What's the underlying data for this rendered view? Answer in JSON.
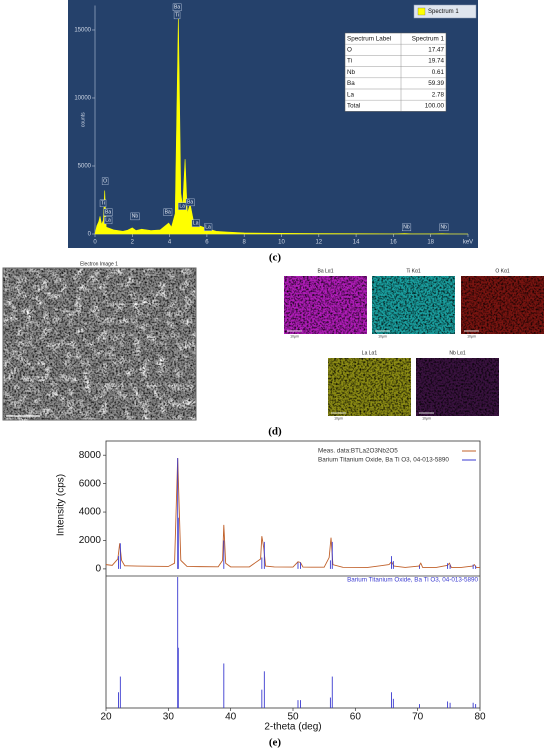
{
  "panels": {
    "c": "(c)",
    "d": "(d)",
    "e": "(e)"
  },
  "chart_data": [
    {
      "type": "area",
      "ylabel": "counts",
      "x": [
        0,
        0.1,
        0.2,
        0.27,
        0.35,
        0.45,
        0.52,
        0.6,
        0.8,
        1.0,
        1.5,
        1.75,
        2.0,
        2.2,
        2.5,
        3.0,
        3.5,
        3.95,
        4.1,
        4.3,
        4.47,
        4.6,
        4.7,
        4.83,
        4.95,
        5.1,
        5.16,
        5.3,
        5.5,
        5.6,
        5.8,
        6.0,
        6.5,
        7,
        8,
        10,
        12,
        14,
        16,
        16.6,
        17,
        18,
        18.6,
        19,
        20
      ],
      "series": [
        {
          "name": "Spectrum 1",
          "color": "#ffff00",
          "values": [
            0,
            600,
            900,
            1300,
            700,
            1000,
            3200,
            500,
            400,
            300,
            200,
            280,
            450,
            250,
            350,
            250,
            300,
            800,
            500,
            1500,
            16000,
            3000,
            2000,
            5500,
            1500,
            2200,
            1800,
            800,
            900,
            600,
            500,
            400,
            200,
            150,
            80,
            50,
            30,
            20,
            10,
            30,
            10,
            5,
            20,
            5,
            0
          ]
        }
      ],
      "xlim": [
        0,
        20
      ],
      "xticks": [
        0,
        2,
        4,
        6,
        8,
        10,
        12,
        14,
        16,
        18,
        {
          "value": 20,
          "label": "keV"
        }
      ],
      "ylim": [
        0,
        16800
      ],
      "yticks": [
        0,
        5000,
        10000,
        15000
      ],
      "annotations": [
        {
          "text": "O",
          "x": 0.54,
          "y": 3900
        },
        {
          "text": "Ti",
          "x": 0.43,
          "y": 2280
        },
        {
          "text": "Ba",
          "x": 0.7,
          "y": 1620
        },
        {
          "text": "La",
          "x": 0.7,
          "y": 1030
        },
        {
          "text": "Nb",
          "x": 2.14,
          "y": 1320
        },
        {
          "text": "Ba",
          "x": 3.9,
          "y": 1620
        },
        {
          "text": "Ba",
          "x": 4.4,
          "y": 16690
        },
        {
          "text": "Ti",
          "x": 4.4,
          "y": 16100
        },
        {
          "text": "La",
          "x": 4.67,
          "y": 2060
        },
        {
          "text": "Ba",
          "x": 5.1,
          "y": 2350
        },
        {
          "text": "La",
          "x": 5.4,
          "y": 810
        },
        {
          "text": "La",
          "x": 6.06,
          "y": 515
        },
        {
          "text": "Nb",
          "x": 16.7,
          "y": 515
        },
        {
          "text": "Nb",
          "x": 18.7,
          "y": 515
        }
      ]
    },
    {
      "type": "line",
      "ylabel": "Intensity (cps)",
      "xlim": [
        20,
        80
      ],
      "ylim": [
        -500,
        9000
      ],
      "yticks": [
        0,
        2000,
        4000,
        6000,
        8000
      ],
      "series": [
        {
          "name": "Meas. data:BTLa2O3Nb2O5",
          "color": "#c0602a",
          "style": "line",
          "x": [
            20,
            21,
            21.9,
            22.2,
            22.5,
            23,
            25,
            28,
            30,
            31.0,
            31.5,
            32.0,
            33,
            35,
            38,
            38.7,
            38.9,
            39.2,
            40,
            43,
            44.8,
            45.0,
            45.3,
            45.6,
            47,
            50,
            50.8,
            51.2,
            51.6,
            53,
            55,
            55.8,
            56.1,
            56.4,
            58,
            62,
            65.4,
            65.8,
            66.2,
            68,
            70.2,
            70.5,
            70.8,
            73,
            74.8,
            75.1,
            75.4,
            77,
            78.8,
            79.1,
            79.4,
            80
          ],
          "values": [
            300,
            250,
            700,
            1800,
            600,
            220,
            200,
            180,
            170,
            400,
            7800,
            600,
            170,
            160,
            150,
            600,
            3100,
            400,
            140,
            140,
            700,
            2300,
            1500,
            200,
            140,
            130,
            500,
            450,
            130,
            120,
            120,
            800,
            2200,
            300,
            110,
            100,
            300,
            500,
            200,
            100,
            200,
            400,
            100,
            100,
            250,
            400,
            100,
            100,
            200,
            300,
            100,
            100
          ]
        },
        {
          "name": "Barium Titanium Oxide, Ba Ti O3, 04-013-5890",
          "color": "#3a3ad0",
          "style": "stem",
          "x": [
            22.0,
            22.3,
            31.5,
            31.6,
            38.9,
            45.0,
            45.4,
            50.8,
            51.2,
            56.0,
            56.3,
            65.8,
            66.1,
            70.3,
            74.8,
            75.2,
            78.9,
            79.3
          ],
          "values": [
            900,
            1800,
            7800,
            3600,
            2000,
            800,
            1900,
            450,
            450,
            600,
            1900,
            900,
            550,
            230,
            400,
            300,
            300,
            230
          ]
        }
      ]
    },
    {
      "type": "stem",
      "title": "Barium Titanium Oxide, Ba Ti O3, 04-013-5890",
      "color": "#3a3ad0",
      "xlabel": "2-theta (deg)",
      "x": [
        22.0,
        22.3,
        31.5,
        31.6,
        38.9,
        45.0,
        45.4,
        50.8,
        51.2,
        56.0,
        56.3,
        65.8,
        66.1,
        70.3,
        74.8,
        75.2,
        78.9,
        79.3
      ],
      "values": [
        12,
        24,
        100,
        46,
        34,
        14,
        28,
        6,
        6,
        8,
        24,
        12,
        7,
        3,
        5,
        4,
        4,
        3
      ],
      "xlim": [
        20,
        80
      ],
      "xticks": [
        20,
        30,
        40,
        50,
        60,
        70,
        80
      ],
      "ylim": [
        0,
        100
      ]
    }
  ],
  "eds_table": {
    "header": [
      "Spectrum Label",
      "Spectrum 1"
    ],
    "rows": [
      [
        "O",
        "17.47"
      ],
      [
        "Ti",
        "19.74"
      ],
      [
        "Nb",
        "0.61"
      ],
      [
        "Ba",
        "59.39"
      ],
      [
        "La",
        "2.78"
      ],
      [
        "Total",
        "100.00"
      ]
    ]
  },
  "sem": {
    "title": "Electron Image 1",
    "scale": "10μm"
  },
  "maps": [
    {
      "label": "Ba Lα1",
      "color": "#b01cb8",
      "scale": "10μm"
    },
    {
      "label": "Ti Kα1",
      "color": "#1aa0a0",
      "scale": "10μm"
    },
    {
      "label": "O Kα1",
      "color": "#7a1410",
      "scale": "10μm"
    },
    {
      "label": "La Lα1",
      "color": "#8c8c14",
      "scale": "10μm"
    },
    {
      "label": "Nb Lα1",
      "color": "#3a1240",
      "scale": "10μm"
    }
  ]
}
